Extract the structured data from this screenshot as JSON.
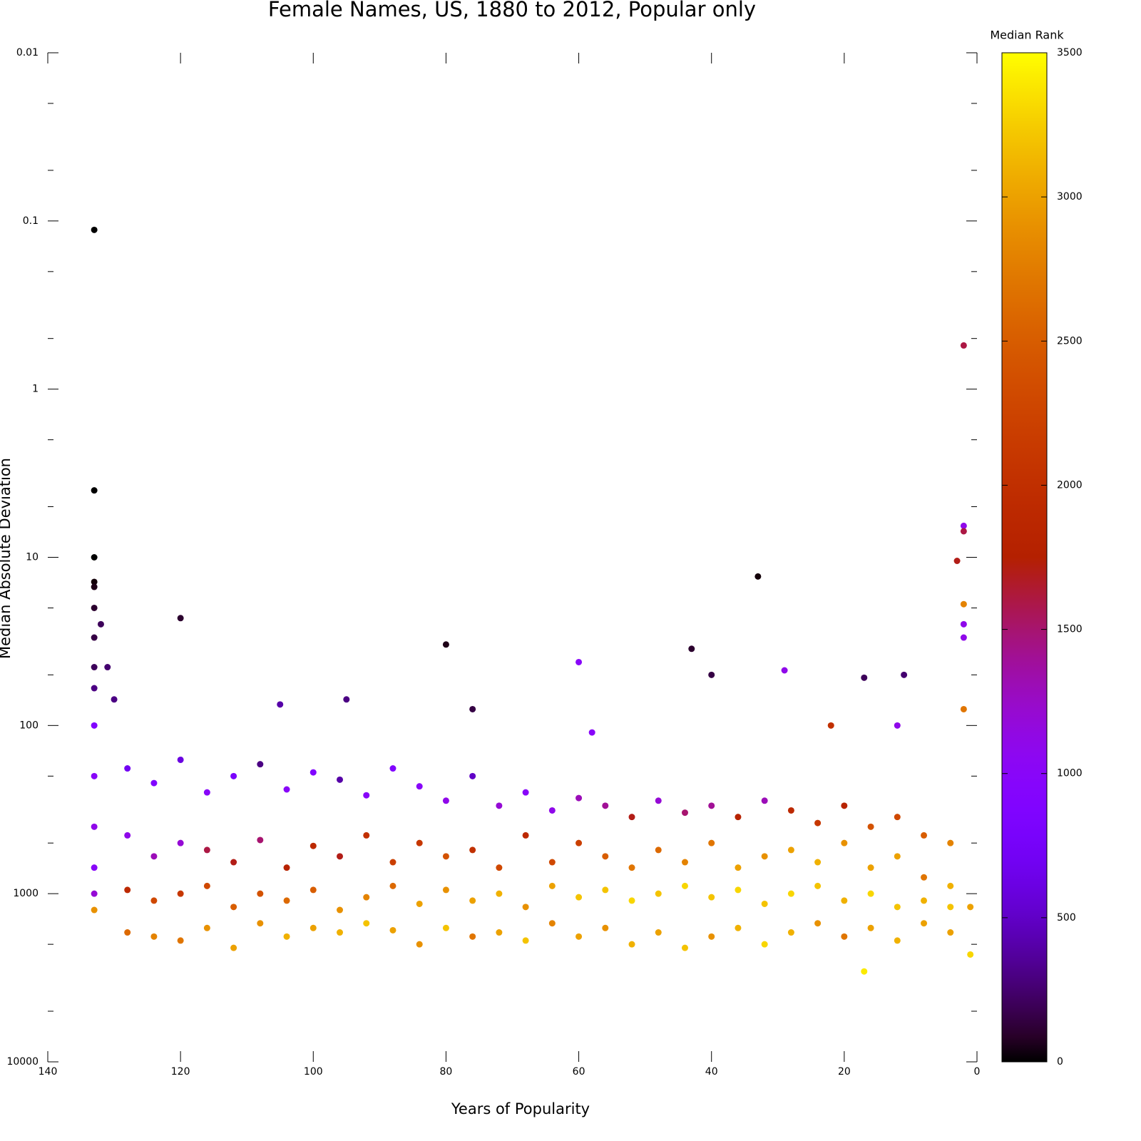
{
  "chart_data": {
    "type": "scatter",
    "title": "Female Names, US, 1880 to 2012, Popular only",
    "x_label": "Years of Popularity",
    "y_label": "Median Absolute Deviation",
    "xlim": [
      140,
      0
    ],
    "xticks": [
      140,
      120,
      100,
      80,
      60,
      40,
      20,
      0
    ],
    "ylim": [
      0.01,
      10000
    ],
    "yticks": [
      0.01,
      0.1,
      1,
      10,
      100,
      1000,
      10000
    ],
    "yminor_ticks": [
      0.02,
      0.05,
      0.2,
      0.5,
      2,
      5,
      20,
      50,
      200,
      500,
      2000,
      5000
    ],
    "ylog": true,
    "yreversed": true,
    "colorbar": {
      "label": "Median Rank",
      "lim": [
        0,
        3500
      ],
      "ticks": [
        0,
        500,
        1000,
        1500,
        2000,
        2500,
        3000,
        3500
      ]
    },
    "series": [
      {
        "x": [
          128,
          128,
          128,
          128,
          124,
          124,
          124,
          124,
          120,
          120,
          120,
          120,
          116,
          116,
          116,
          116,
          112,
          112,
          112,
          112,
          108,
          108,
          108,
          108,
          104,
          104,
          104,
          104,
          100,
          100,
          100,
          100,
          96,
          96,
          96,
          96,
          92,
          92,
          92,
          92,
          88,
          88,
          88,
          88,
          84,
          84,
          84,
          84,
          80,
          80,
          80,
          80,
          76,
          76,
          76,
          76,
          72,
          72,
          72,
          72,
          68,
          68,
          68,
          68,
          64,
          64,
          64,
          64,
          60,
          60,
          60,
          60,
          56,
          56,
          56,
          56,
          52,
          52,
          52,
          52,
          48,
          48,
          48,
          48,
          44,
          44,
          44,
          44,
          40,
          40,
          40,
          40,
          36,
          36,
          36,
          36,
          32,
          32,
          32,
          32,
          28,
          28,
          28,
          28,
          24,
          24,
          24,
          24,
          20,
          20,
          20,
          20,
          16,
          16,
          16,
          16,
          12,
          12,
          12,
          12,
          8,
          8,
          8,
          8,
          4,
          4,
          4,
          4,
          133,
          133,
          133,
          133,
          120,
          80,
          33,
          43,
          60,
          29,
          2,
          2,
          2,
          3,
          2,
          2,
          2,
          40,
          17,
          11,
          76,
          95,
          105,
          58,
          12,
          22,
          2,
          1,
          1,
          17,
          133,
          133,
          133,
          133,
          133,
          133,
          133,
          133,
          133,
          133,
          133,
          132,
          131,
          130
        ],
        "y": [
          180,
          450,
          950,
          1700,
          220,
          600,
          1100,
          1800,
          160,
          500,
          1000,
          1900,
          250,
          550,
          900,
          1600,
          200,
          650,
          1200,
          2100,
          170,
          480,
          1000,
          1500,
          240,
          700,
          1100,
          1800,
          190,
          520,
          950,
          1600,
          210,
          600,
          1250,
          1700,
          260,
          450,
          1050,
          1500,
          180,
          650,
          900,
          1650,
          230,
          500,
          1150,
          2000,
          280,
          600,
          950,
          1600,
          200,
          550,
          1100,
          1800,
          300,
          700,
          1000,
          1700,
          250,
          450,
          1200,
          1900,
          320,
          650,
          900,
          1500,
          270,
          500,
          1050,
          1800,
          300,
          600,
          950,
          1600,
          350,
          700,
          1100,
          2000,
          280,
          550,
          1000,
          1700,
          330,
          650,
          900,
          2100,
          300,
          500,
          1050,
          1800,
          350,
          700,
          950,
          1600,
          280,
          600,
          1150,
          2000,
          320,
          550,
          1000,
          1700,
          380,
          650,
          900,
          1500,
          300,
          500,
          1100,
          1800,
          400,
          700,
          1000,
          1600,
          350,
          600,
          1200,
          1900,
          450,
          800,
          1100,
          1500,
          500,
          900,
          1200,
          1700,
          0.113,
          4,
          10,
          14,
          23,
          33,
          13,
          35,
          42,
          47,
          0.55,
          6.5,
          7,
          10.5,
          19,
          25,
          30,
          50,
          52,
          50,
          80,
          70,
          75,
          110,
          100,
          100,
          80,
          1200,
          2300,
          2900,
          15,
          20,
          30,
          45,
          60,
          100,
          200,
          400,
          700,
          1000,
          1250,
          25,
          45,
          70
        ],
        "color_values": [
          700,
          1100,
          1900,
          2600,
          900,
          1300,
          2300,
          2800,
          600,
          1200,
          2100,
          2700,
          1000,
          1600,
          2300,
          2900,
          800,
          1700,
          2500,
          3000,
          300,
          1500,
          2400,
          2900,
          1000,
          1800,
          2600,
          3100,
          900,
          1900,
          2500,
          3000,
          400,
          1700,
          2900,
          3100,
          1000,
          2000,
          2800,
          3200,
          900,
          2200,
          2600,
          3000,
          1000,
          2100,
          3000,
          2900,
          1100,
          2400,
          2900,
          3200,
          500,
          2000,
          3000,
          2700,
          1200,
          2300,
          3100,
          3000,
          1000,
          1900,
          2900,
          3200,
          1100,
          2300,
          3000,
          2800,
          1300,
          2200,
          3200,
          3000,
          1400,
          2500,
          3200,
          2900,
          1700,
          2700,
          3300,
          3100,
          1200,
          2600,
          3200,
          3000,
          1500,
          2800,
          3300,
          3200,
          1400,
          2700,
          3200,
          2900,
          1800,
          3000,
          3300,
          3100,
          1300,
          2900,
          3200,
          3300,
          1900,
          3000,
          3300,
          3100,
          2100,
          3100,
          3200,
          2900,
          1800,
          2900,
          3100,
          2700,
          2400,
          3000,
          3300,
          3000,
          2300,
          3000,
          3200,
          3100,
          2500,
          2700,
          3100,
          3000,
          2800,
          3100,
          3200,
          3000,
          0,
          0,
          0,
          20,
          100,
          50,
          20,
          100,
          1000,
          1100,
          1600,
          1100,
          1600,
          1700,
          2800,
          1100,
          1100,
          150,
          200,
          250,
          150,
          300,
          400,
          1000,
          1100,
          2000,
          2700,
          3000,
          3300,
          3400,
          50,
          100,
          150,
          200,
          300,
          900,
          1000,
          1100,
          1000,
          1200,
          2900,
          200,
          250,
          300
        ]
      }
    ]
  }
}
